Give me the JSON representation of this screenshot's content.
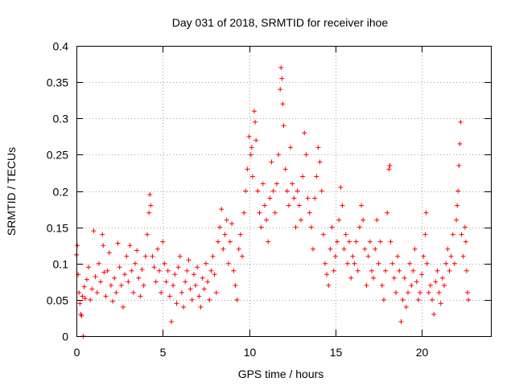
{
  "chart_data": {
    "type": "scatter",
    "title": "Day 031 of 2018, SRMTID for receiver ihoe",
    "xlabel": "GPS time / hours",
    "ylabel": "SRMTID / TECUs",
    "xlim": [
      0,
      24
    ],
    "ylim": [
      0,
      0.4
    ],
    "x_ticks": [
      0,
      5,
      10,
      15,
      20
    ],
    "x_tick_labels": [
      "0",
      "5",
      "10",
      "15",
      "20"
    ],
    "y_ticks": [
      0,
      0.05,
      0.1,
      0.15,
      0.2,
      0.25,
      0.3,
      0.35,
      0.4
    ],
    "y_tick_labels": [
      "0",
      "0.05",
      "0.1",
      "0.15",
      "0.2",
      "0.25",
      "0.3",
      "0.35",
      "0.4"
    ],
    "grid": true,
    "marker": "+",
    "marker_color": "#ff0000",
    "series": [
      {
        "name": "SRMTID",
        "points": [
          [
            0.0,
            0.112
          ],
          [
            0.05,
            0.125
          ],
          [
            0.1,
            0.085
          ],
          [
            0.15,
            0.06
          ],
          [
            0.2,
            0.045
          ],
          [
            0.25,
            0.03
          ],
          [
            0.3,
            0.028
          ],
          [
            0.35,
            0.055
          ],
          [
            0.4,
            0.0
          ],
          [
            0.45,
            0.068
          ],
          [
            0.5,
            0.052
          ],
          [
            0.6,
            0.078
          ],
          [
            0.7,
            0.095
          ],
          [
            0.8,
            0.05
          ],
          [
            0.9,
            0.065
          ],
          [
            1.0,
            0.145
          ],
          [
            1.1,
            0.082
          ],
          [
            1.2,
            0.06
          ],
          [
            1.3,
            0.1
          ],
          [
            1.4,
            0.075
          ],
          [
            1.5,
            0.14
          ],
          [
            1.55,
            0.125
          ],
          [
            1.6,
            0.088
          ],
          [
            1.7,
            0.055
          ],
          [
            1.8,
            0.09
          ],
          [
            1.9,
            0.115
          ],
          [
            2.0,
            0.07
          ],
          [
            2.1,
            0.048
          ],
          [
            2.2,
            0.08
          ],
          [
            2.3,
            0.06
          ],
          [
            2.4,
            0.128
          ],
          [
            2.5,
            0.095
          ],
          [
            2.6,
            0.07
          ],
          [
            2.7,
            0.04
          ],
          [
            2.8,
            0.085
          ],
          [
            2.9,
            0.11
          ],
          [
            3.0,
            0.075
          ],
          [
            3.1,
            0.125
          ],
          [
            3.2,
            0.09
          ],
          [
            3.3,
            0.06
          ],
          [
            3.4,
            0.1
          ],
          [
            3.5,
            0.118
          ],
          [
            3.6,
            0.08
          ],
          [
            3.7,
            0.055
          ],
          [
            3.8,
            0.092
          ],
          [
            3.9,
            0.07
          ],
          [
            4.0,
            0.11
          ],
          [
            4.1,
            0.14
          ],
          [
            4.2,
            0.17
          ],
          [
            4.25,
            0.195
          ],
          [
            4.3,
            0.18
          ],
          [
            4.4,
            0.11
          ],
          [
            4.5,
            0.095
          ],
          [
            4.6,
            0.075
          ],
          [
            4.7,
            0.12
          ],
          [
            4.8,
            0.09
          ],
          [
            4.9,
            0.06
          ],
          [
            5.0,
            0.13
          ],
          [
            5.1,
            0.1
          ],
          [
            5.2,
            0.075
          ],
          [
            5.3,
            0.09
          ],
          [
            5.4,
            0.055
          ],
          [
            5.5,
            0.02
          ],
          [
            5.6,
            0.07
          ],
          [
            5.7,
            0.085
          ],
          [
            5.8,
            0.045
          ],
          [
            5.9,
            0.095
          ],
          [
            6.0,
            0.11
          ],
          [
            6.1,
            0.06
          ],
          [
            6.2,
            0.04
          ],
          [
            6.3,
            0.075
          ],
          [
            6.4,
            0.09
          ],
          [
            6.5,
            0.105
          ],
          [
            6.6,
            0.065
          ],
          [
            6.7,
            0.05
          ],
          [
            6.8,
            0.085
          ],
          [
            6.9,
            0.07
          ],
          [
            7.0,
            0.095
          ],
          [
            7.1,
            0.055
          ],
          [
            7.2,
            0.04
          ],
          [
            7.3,
            0.08
          ],
          [
            7.4,
            0.065
          ],
          [
            7.5,
            0.1
          ],
          [
            7.6,
            0.075
          ],
          [
            7.7,
            0.05
          ],
          [
            7.8,
            0.09
          ],
          [
            7.9,
            0.11
          ],
          [
            8.0,
            0.085
          ],
          [
            8.1,
            0.06
          ],
          [
            8.2,
            0.13
          ],
          [
            8.3,
            0.15
          ],
          [
            8.4,
            0.175
          ],
          [
            8.5,
            0.12
          ],
          [
            8.6,
            0.14
          ],
          [
            8.7,
            0.16
          ],
          [
            8.8,
            0.1
          ],
          [
            8.9,
            0.13
          ],
          [
            9.0,
            0.155
          ],
          [
            9.1,
            0.09
          ],
          [
            9.2,
            0.07
          ],
          [
            9.3,
            0.05
          ],
          [
            9.4,
            0.12
          ],
          [
            9.5,
            0.14
          ],
          [
            9.6,
            0.11
          ],
          [
            9.7,
            0.17
          ],
          [
            9.8,
            0.2
          ],
          [
            9.9,
            0.23
          ],
          [
            10.0,
            0.275
          ],
          [
            10.1,
            0.25
          ],
          [
            10.15,
            0.26
          ],
          [
            10.2,
            0.22
          ],
          [
            10.3,
            0.31
          ],
          [
            10.35,
            0.295
          ],
          [
            10.4,
            0.27
          ],
          [
            10.5,
            0.2
          ],
          [
            10.6,
            0.17
          ],
          [
            10.7,
            0.15
          ],
          [
            10.8,
            0.21
          ],
          [
            10.9,
            0.18
          ],
          [
            11.0,
            0.16
          ],
          [
            11.1,
            0.13
          ],
          [
            11.2,
            0.19
          ],
          [
            11.3,
            0.24
          ],
          [
            11.4,
            0.2
          ],
          [
            11.5,
            0.17
          ],
          [
            11.6,
            0.21
          ],
          [
            11.7,
            0.25
          ],
          [
            11.8,
            0.34
          ],
          [
            11.85,
            0.37
          ],
          [
            11.9,
            0.355
          ],
          [
            11.95,
            0.32
          ],
          [
            12.0,
            0.29
          ],
          [
            12.1,
            0.23
          ],
          [
            12.2,
            0.2
          ],
          [
            12.3,
            0.18
          ],
          [
            12.4,
            0.26
          ],
          [
            12.5,
            0.21
          ],
          [
            12.6,
            0.19
          ],
          [
            12.7,
            0.15
          ],
          [
            12.8,
            0.2
          ],
          [
            12.9,
            0.18
          ],
          [
            13.0,
            0.16
          ],
          [
            13.1,
            0.22
          ],
          [
            13.2,
            0.28
          ],
          [
            13.3,
            0.25
          ],
          [
            13.4,
            0.19
          ],
          [
            13.5,
            0.17
          ],
          [
            13.6,
            0.15
          ],
          [
            13.7,
            0.12
          ],
          [
            13.8,
            0.19
          ],
          [
            13.9,
            0.22
          ],
          [
            14.0,
            0.26
          ],
          [
            14.1,
            0.24
          ],
          [
            14.2,
            0.2
          ],
          [
            14.3,
            0.14
          ],
          [
            14.4,
            0.1
          ],
          [
            14.5,
            0.085
          ],
          [
            14.6,
            0.07
          ],
          [
            14.7,
            0.12
          ],
          [
            14.8,
            0.15
          ],
          [
            14.9,
            0.09
          ],
          [
            15.0,
            0.11
          ],
          [
            15.1,
            0.13
          ],
          [
            15.2,
            0.16
          ],
          [
            15.3,
            0.205
          ],
          [
            15.4,
            0.18
          ],
          [
            15.5,
            0.12
          ],
          [
            15.6,
            0.14
          ],
          [
            15.7,
            0.1
          ],
          [
            15.8,
            0.13
          ],
          [
            15.9,
            0.08
          ],
          [
            16.0,
            0.11
          ],
          [
            16.1,
            0.1
          ],
          [
            16.2,
            0.13
          ],
          [
            16.3,
            0.09
          ],
          [
            16.4,
            0.15
          ],
          [
            16.5,
            0.18
          ],
          [
            16.6,
            0.16
          ],
          [
            16.7,
            0.12
          ],
          [
            16.8,
            0.07
          ],
          [
            16.9,
            0.11
          ],
          [
            17.0,
            0.13
          ],
          [
            17.1,
            0.09
          ],
          [
            17.2,
            0.08
          ],
          [
            17.3,
            0.12
          ],
          [
            17.4,
            0.16
          ],
          [
            17.5,
            0.1
          ],
          [
            17.6,
            0.13
          ],
          [
            17.7,
            0.07
          ],
          [
            17.8,
            0.05
          ],
          [
            17.9,
            0.09
          ],
          [
            18.0,
            0.17
          ],
          [
            18.1,
            0.23
          ],
          [
            18.15,
            0.235
          ],
          [
            18.2,
            0.13
          ],
          [
            18.3,
            0.1
          ],
          [
            18.4,
            0.08
          ],
          [
            18.5,
            0.06
          ],
          [
            18.6,
            0.11
          ],
          [
            18.7,
            0.09
          ],
          [
            18.8,
            0.02
          ],
          [
            18.9,
            0.05
          ],
          [
            19.0,
            0.08
          ],
          [
            19.1,
            0.04
          ],
          [
            19.2,
            0.06
          ],
          [
            19.3,
            0.1
          ],
          [
            19.4,
            0.07
          ],
          [
            19.5,
            0.09
          ],
          [
            19.6,
            0.12
          ],
          [
            19.7,
            0.075
          ],
          [
            19.8,
            0.05
          ],
          [
            19.9,
            0.06
          ],
          [
            20.0,
            0.085
          ],
          [
            20.1,
            0.11
          ],
          [
            20.2,
            0.14
          ],
          [
            20.25,
            0.17
          ],
          [
            20.3,
            0.1
          ],
          [
            20.4,
            0.06
          ],
          [
            20.5,
            0.07
          ],
          [
            20.6,
            0.05
          ],
          [
            20.7,
            0.03
          ],
          [
            20.8,
            0.075
          ],
          [
            20.9,
            0.09
          ],
          [
            21.0,
            0.06
          ],
          [
            21.1,
            0.045
          ],
          [
            21.2,
            0.08
          ],
          [
            21.3,
            0.07
          ],
          [
            21.4,
            0.1
          ],
          [
            21.5,
            0.12
          ],
          [
            21.6,
            0.09
          ],
          [
            21.7,
            0.11
          ],
          [
            21.8,
            0.14
          ],
          [
            21.9,
            0.1
          ],
          [
            22.0,
            0.16
          ],
          [
            22.05,
            0.18
          ],
          [
            22.1,
            0.2
          ],
          [
            22.15,
            0.235
          ],
          [
            22.2,
            0.265
          ],
          [
            22.25,
            0.295
          ],
          [
            22.3,
            0.14
          ],
          [
            22.4,
            0.11
          ],
          [
            22.5,
            0.15
          ],
          [
            22.55,
            0.13
          ],
          [
            22.6,
            0.09
          ],
          [
            22.65,
            0.06
          ],
          [
            22.7,
            0.05
          ]
        ]
      }
    ]
  }
}
